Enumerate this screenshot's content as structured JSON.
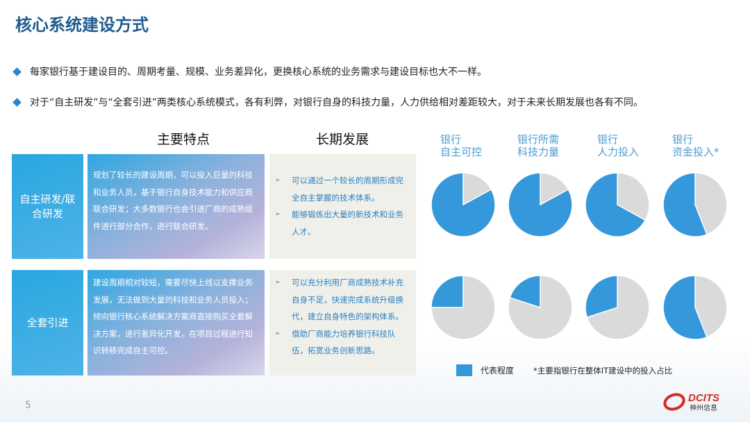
{
  "title": "核心系统建设方式",
  "bullets": [
    "每家银行基于建设目的、周期考量、规模、业务差异化，更换核心系统的业务需求与建设目标也大不一样。",
    "对于“自主研发”与“全套引进”两类核心系统模式，各有利弊，对银行自身的科技力量，人力供给相对差距较大，对于未来长期发展也各有不同。"
  ],
  "headers": {
    "features": "主要特点",
    "development": "长期发展"
  },
  "rows": [
    {
      "label": "自主研发/联合研发",
      "features": "规划了较长的建设周期，可以投入巨量的科技和业务人员，基于银行自身技术能力和供应商联合研发；大多数银行也会引进厂商的成熟组件进行部分合作，进行联合研发。",
      "development": [
        "可以通过一个较长的周期形成完全自主掌握的技术体系。",
        "能够锻炼出大量的新技术和业务人才。"
      ]
    },
    {
      "label": "全套引进",
      "features": "建设周期相对较短，需要尽快上线以支撑业务发展，无法做到大量的科技和业务人员投入；倾向银行核心系统解决方案商直接购买全套解决方案，进行差异化开发，在项目过程进行知识转移完成自主可控。",
      "development": [
        "可以充分利用厂商成熟技术补充自身不足，快速完成系统升级换代，建立自身特色的架构体系。",
        "借助厂商能力培养银行科技队伍，拓宽业务创新思路。"
      ]
    }
  ],
  "chart_data": {
    "type": "pie",
    "categories": [
      [
        "银行",
        "自主可控"
      ],
      [
        "银行所需",
        "科技力量"
      ],
      [
        "银行",
        "人力投入"
      ],
      [
        "银行",
        "资金投入*"
      ]
    ],
    "series": [
      {
        "row": "自主研发/联合研发",
        "values": [
          0.83,
          0.83,
          0.67,
          0.56
        ]
      },
      {
        "row": "全套引进",
        "values": [
          0.25,
          0.2,
          0.3,
          0.56
        ]
      }
    ],
    "legend": "代表程度",
    "note": "*主要指银行在整体IT建设中的投入占比",
    "colors": {
      "filled": "#3498db",
      "rest": "#dadada"
    }
  },
  "page_number": "5",
  "logo": {
    "text": "DCITS",
    "subtext": "神州信息"
  }
}
